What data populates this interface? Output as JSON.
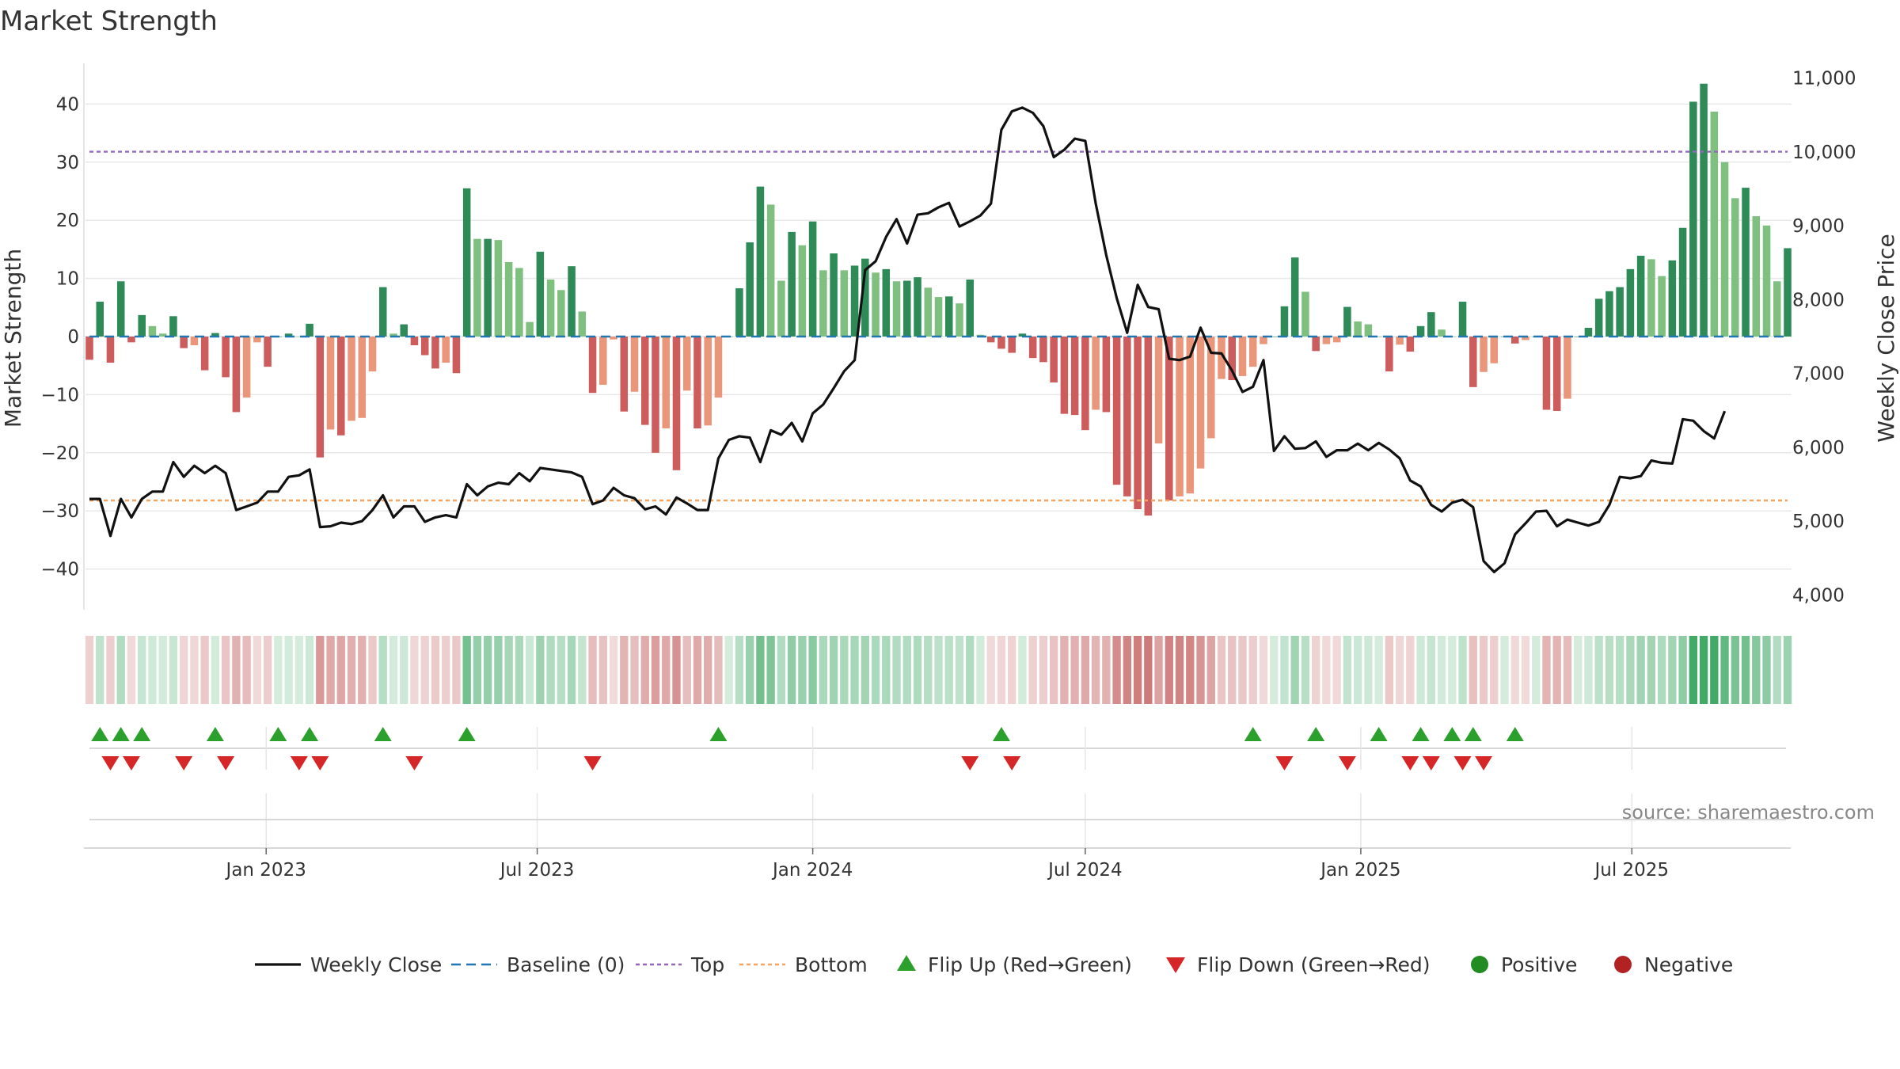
{
  "title": "Market Strength",
  "colors": {
    "bar_pos_strong": "#2e8b57",
    "bar_pos_weak": "#7fbf7f",
    "bar_neg_strong": "#cd5c5c",
    "bar_neg_weak": "#e9967a",
    "close_line": "#111111",
    "baseline": "#1f77b4",
    "top": "#9467bd",
    "bottom": "#f4a460",
    "flip_up": "#2ca02c",
    "flip_down": "#d62728",
    "positive": "#228b22",
    "negative": "#b22222",
    "grid": "#e8e8e8"
  },
  "source": "source: sharemaestro.com",
  "legend": [
    {
      "key": "close",
      "label": "Weekly Close",
      "icon": "line-solid"
    },
    {
      "key": "baseline",
      "label": "Baseline (0)",
      "icon": "line-dashed"
    },
    {
      "key": "top",
      "label": "Top",
      "icon": "line-dotted"
    },
    {
      "key": "bottom",
      "label": "Bottom",
      "icon": "line-dotted"
    },
    {
      "key": "flip_up",
      "label": "Flip Up (Red→Green)",
      "icon": "triangle-up"
    },
    {
      "key": "flip_down",
      "label": "Flip Down (Green→Red)",
      "icon": "triangle-down"
    },
    {
      "key": "positive",
      "label": "Positive",
      "icon": "circle"
    },
    {
      "key": "negative",
      "label": "Negative",
      "icon": "circle"
    }
  ],
  "chart_data": {
    "type": "bar",
    "title": "Market Strength",
    "x_start": "2022-09-05",
    "x_step_days": 7,
    "x_ticks": [
      {
        "date": "2023-01-01",
        "label": "Jan 2023"
      },
      {
        "date": "2023-07-01",
        "label": "Jul 2023"
      },
      {
        "date": "2024-01-01",
        "label": "Jan 2024"
      },
      {
        "date": "2024-07-01",
        "label": "Jul 2024"
      },
      {
        "date": "2025-01-01",
        "label": "Jan 2025"
      },
      {
        "date": "2025-07-01",
        "label": "Jul 2025"
      }
    ],
    "y_left": {
      "label": "Market Strength",
      "ticks": [
        40,
        30,
        20,
        10,
        0,
        -10,
        -20,
        -30,
        -40
      ],
      "range": [
        -47,
        47
      ]
    },
    "y_right": {
      "label": "Weekly Close Price",
      "ticks": [
        "11,000",
        "10,000",
        "9,000",
        "8,000",
        "7,000",
        "6,000",
        "5,000",
        "4,000"
      ],
      "tick_values": [
        11000,
        10000,
        9000,
        8000,
        7000,
        6000,
        5000,
        4000
      ],
      "range": [
        3800,
        11200
      ]
    },
    "top_level": 31.8,
    "bottom_level": -28.2,
    "baseline": 0,
    "series": [
      {
        "name": "Market Strength",
        "values": [
          -4,
          6,
          -4.5,
          9.5,
          -1,
          3.7,
          1.8,
          0.5,
          3.5,
          -2,
          -1.5,
          -5.8,
          0.6,
          -7,
          -13,
          -10.5,
          -1,
          -5.2,
          0,
          0.5,
          0,
          2.2,
          -20.8,
          -16,
          -17,
          -14.5,
          -14,
          -6,
          8.5,
          0.5,
          2.1,
          -1.5,
          -3.2,
          -5.5,
          -4.5,
          -6.3,
          25.5,
          16.8,
          16.8,
          16.6,
          12.8,
          11.8,
          2.5,
          14.6,
          9.8,
          8,
          12.1,
          4.3,
          -9.7,
          -8.3,
          -0.5,
          -12.9,
          -9.5,
          -15.2,
          -20,
          -15.8,
          -23,
          -9.3,
          -15.8,
          -15.3,
          -10.5,
          0,
          8.3,
          16.2,
          25.8,
          22.7,
          9.6,
          18,
          15.7,
          19.8,
          11.4,
          14.3,
          11.4,
          12.2,
          13.4,
          11,
          11.6,
          9.5,
          9.6,
          10.2,
          8.4,
          6.8,
          6.9,
          5.7,
          9.8,
          0.3,
          -1,
          -2.1,
          -2.8,
          0.5,
          -3.7,
          -4.4,
          -7.9,
          -13.3,
          -13.5,
          -16.1,
          -12.6,
          -13,
          -25.5,
          -27.5,
          -29.7,
          -30.8,
          -18.4,
          -28.2,
          -27.5,
          -27,
          -22.7,
          -17.5,
          -7.3,
          -7.5,
          -6.8,
          -5.2,
          -1.3,
          0,
          5.2,
          13.6,
          7.7,
          -2.5,
          -1.3,
          -1,
          5.1,
          2.6,
          2.1,
          0,
          -6,
          -1.4,
          -2.6,
          1.8,
          4.2,
          1.2,
          0,
          6,
          -8.7,
          -6.1,
          -4.6,
          0,
          -1.2,
          -0.6,
          0,
          -12.6,
          -12.8,
          -10.7,
          0,
          1.5,
          6.5,
          7.8,
          8.5,
          11.6,
          13.9,
          13.3,
          10.4,
          13.1,
          18.7,
          40.4,
          43.5,
          38.7,
          30,
          23.8,
          25.6,
          20.7,
          19.1,
          9.5,
          15.2
        ]
      },
      {
        "name": "Weekly Close",
        "values": [
          5300,
          5300,
          4800,
          5300,
          5050,
          5300,
          5400,
          5400,
          5800,
          5600,
          5750,
          5650,
          5750,
          5650,
          5150,
          5200,
          5250,
          5400,
          5400,
          5600,
          5620,
          5700,
          4920,
          4930,
          4980,
          4960,
          5000,
          5150,
          5350,
          5050,
          5200,
          5200,
          4990,
          5050,
          5080,
          5050,
          5500,
          5350,
          5470,
          5520,
          5500,
          5650,
          5540,
          5720,
          5700,
          5680,
          5660,
          5600,
          5230,
          5280,
          5450,
          5350,
          5310,
          5160,
          5200,
          5090,
          5320,
          5240,
          5150,
          5150,
          5850,
          6100,
          6150,
          6130,
          5800,
          6230,
          6170,
          6330,
          6080,
          6460,
          6580,
          6800,
          7030,
          7180,
          8400,
          8520,
          8850,
          9090,
          8760,
          9150,
          9170,
          9250,
          9310,
          8990,
          9060,
          9140,
          9300,
          10300,
          10550,
          10600,
          10530,
          10350,
          9930,
          10030,
          10180,
          10150,
          9300,
          8600,
          8020,
          7550,
          8200,
          7900,
          7870,
          7200,
          7180,
          7230,
          7620,
          7280,
          7270,
          7040,
          6750,
          6820,
          7180,
          5950,
          6150,
          5980,
          5990,
          6080,
          5870,
          5960,
          5960,
          6050,
          5960,
          6060,
          5970,
          5850,
          5550,
          5470,
          5220,
          5130,
          5250,
          5290,
          5190,
          4460,
          4310,
          4430,
          4820,
          4970,
          5130,
          5140,
          4930,
          5020,
          4980,
          4940,
          4990,
          5220,
          5600,
          5580,
          5610,
          5820,
          5790,
          5780,
          6380,
          6360,
          6220,
          6120,
          6490
        ],
        "axis": "right"
      }
    ],
    "strength_shade": [
      {
        "level": -13,
        "color": "#d4948f"
      }
    ],
    "flip_up_x": [
      1,
      3,
      5,
      12,
      18,
      21,
      28,
      36,
      60,
      87,
      111,
      117,
      123,
      127,
      130,
      132,
      136
    ],
    "flip_down_x": [
      2,
      4,
      9,
      13,
      20,
      22,
      31,
      48,
      84,
      88,
      114,
      120,
      126,
      128,
      131,
      133
    ]
  }
}
